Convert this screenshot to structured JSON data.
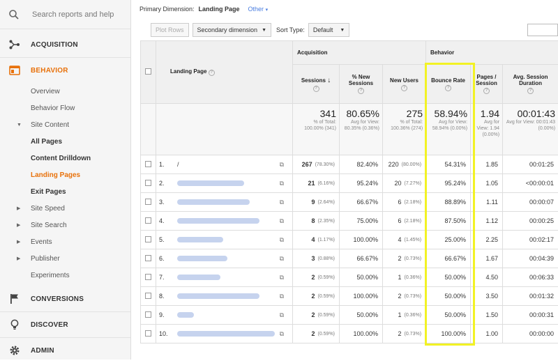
{
  "sidebar": {
    "search_placeholder": "Search reports and help",
    "sections": {
      "acquisition": "ACQUISITION",
      "behavior": "BEHAVIOR",
      "conversions": "CONVERSIONS",
      "discover": "DISCOVER",
      "admin": "ADMIN"
    },
    "behavior_items": {
      "overview": "Overview",
      "behavior_flow": "Behavior Flow",
      "site_content": "Site Content",
      "all_pages": "All Pages",
      "content_drilldown": "Content Drilldown",
      "landing_pages": "Landing Pages",
      "exit_pages": "Exit Pages",
      "site_speed": "Site Speed",
      "site_search": "Site Search",
      "events": "Events",
      "publisher": "Publisher",
      "experiments": "Experiments"
    },
    "colors": {
      "active": "#e8710a"
    }
  },
  "topbar": {
    "primary_dimension_label": "Primary Dimension:",
    "primary_dimension_value": "Landing Page",
    "other_label": "Other"
  },
  "toolbar": {
    "plot_rows": "Plot Rows",
    "secondary_dimension": "Secondary dimension",
    "sort_type_label": "Sort Type:",
    "sort_type_value": "Default"
  },
  "table": {
    "group_acquisition": "Acquisition",
    "group_behavior": "Behavior",
    "col_landing_page": "Landing Page",
    "col_sessions": "Sessions",
    "col_new_sessions": "% New Sessions",
    "col_new_users": "New Users",
    "col_bounce_rate": "Bounce Rate",
    "col_pages_session": "Pages / Session",
    "col_avg_session": "Avg. Session Duration",
    "totals": {
      "sessions": "341",
      "sessions_sub": "% of Total: 100.00% (341)",
      "new_sessions": "80.65%",
      "new_sessions_sub": "Avg for View: 80.35% (0.36%)",
      "new_users": "275",
      "new_users_sub": "% of Total: 100.36% (274)",
      "bounce_rate": "58.94%",
      "bounce_rate_sub": "Avg for View: 58.94% (0.00%)",
      "pages_session": "1.94",
      "pages_session_sub": "Avg for View: 1.94 (0.00%)",
      "avg_duration": "00:01:43",
      "avg_duration_sub": "Avg for View: 00:01:43 (0.00%)"
    },
    "rows": [
      {
        "idx": "1.",
        "page": "/",
        "sessions": "267",
        "sessions_pct": "(78.30%)",
        "new_sessions": "82.40%",
        "new_users": "220",
        "new_users_pct": "(80.00%)",
        "bounce": "54.31%",
        "pps": "1.85",
        "dur": "00:01:25"
      },
      {
        "idx": "2.",
        "page": "",
        "sessions": "21",
        "sessions_pct": "(6.16%)",
        "new_sessions": "95.24%",
        "new_users": "20",
        "new_users_pct": "(7.27%)",
        "bounce": "95.24%",
        "pps": "1.05",
        "dur": "<00:00:01"
      },
      {
        "idx": "3.",
        "page": "",
        "sessions": "9",
        "sessions_pct": "(2.64%)",
        "new_sessions": "66.67%",
        "new_users": "6",
        "new_users_pct": "(2.18%)",
        "bounce": "88.89%",
        "pps": "1.11",
        "dur": "00:00:07"
      },
      {
        "idx": "4.",
        "page": "",
        "sessions": "8",
        "sessions_pct": "(2.35%)",
        "new_sessions": "75.00%",
        "new_users": "6",
        "new_users_pct": "(2.18%)",
        "bounce": "87.50%",
        "pps": "1.12",
        "dur": "00:00:25"
      },
      {
        "idx": "5.",
        "page": "",
        "sessions": "4",
        "sessions_pct": "(1.17%)",
        "new_sessions": "100.00%",
        "new_users": "4",
        "new_users_pct": "(1.45%)",
        "bounce": "25.00%",
        "pps": "2.25",
        "dur": "00:02:17"
      },
      {
        "idx": "6.",
        "page": "",
        "sessions": "3",
        "sessions_pct": "(0.88%)",
        "new_sessions": "66.67%",
        "new_users": "2",
        "new_users_pct": "(0.73%)",
        "bounce": "66.67%",
        "pps": "1.67",
        "dur": "00:04:39"
      },
      {
        "idx": "7.",
        "page": "",
        "sessions": "2",
        "sessions_pct": "(0.59%)",
        "new_sessions": "50.00%",
        "new_users": "1",
        "new_users_pct": "(0.36%)",
        "bounce": "50.00%",
        "pps": "4.50",
        "dur": "00:06:33"
      },
      {
        "idx": "8.",
        "page": "",
        "sessions": "2",
        "sessions_pct": "(0.59%)",
        "new_sessions": "100.00%",
        "new_users": "2",
        "new_users_pct": "(0.73%)",
        "bounce": "50.00%",
        "pps": "3.50",
        "dur": "00:01:32"
      },
      {
        "idx": "9.",
        "page": "",
        "sessions": "2",
        "sessions_pct": "(0.59%)",
        "new_sessions": "50.00%",
        "new_users": "1",
        "new_users_pct": "(0.36%)",
        "bounce": "50.00%",
        "pps": "1.50",
        "dur": "00:00:31"
      },
      {
        "idx": "10.",
        "page": "",
        "sessions": "2",
        "sessions_pct": "(0.59%)",
        "new_sessions": "100.00%",
        "new_users": "2",
        "new_users_pct": "(0.73%)",
        "bounce": "100.00%",
        "pps": "1.00",
        "dur": "00:00:00"
      }
    ],
    "colors": {
      "bounce_highlight": "#f2f224"
    }
  }
}
